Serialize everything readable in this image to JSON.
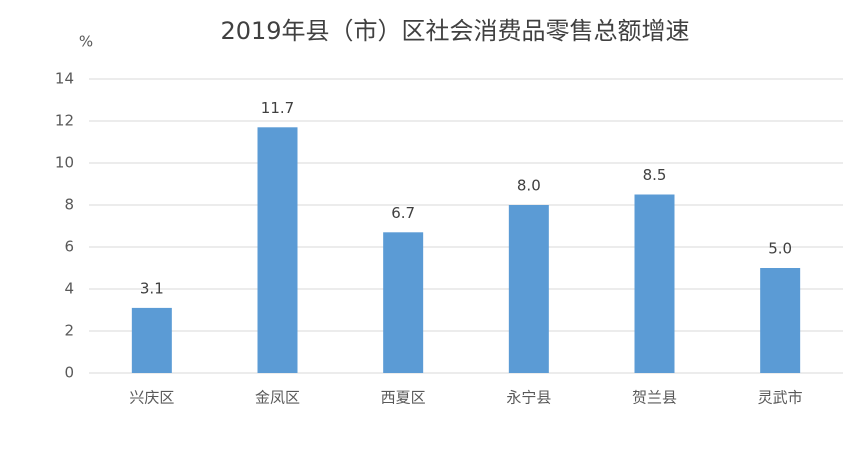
{
  "chart_data": {
    "type": "bar",
    "title": "2019年县（市）区社会消费品零售总额增速",
    "y_label": "%",
    "categories": [
      "兴庆区",
      "金凤区",
      "西夏区",
      "永宁县",
      "贺兰县",
      "灵武市"
    ],
    "values": [
      3.1,
      11.7,
      6.7,
      8,
      8.5,
      5
    ],
    "value_labels": [
      "3.1",
      "11.7",
      "6.7",
      "8.0",
      "8.5",
      "5.0"
    ],
    "color": "#5b9bd5",
    "ylim": [
      0,
      14
    ],
    "yticks": [
      0,
      2,
      4,
      6,
      8,
      10,
      12,
      14
    ],
    "grid": true
  }
}
